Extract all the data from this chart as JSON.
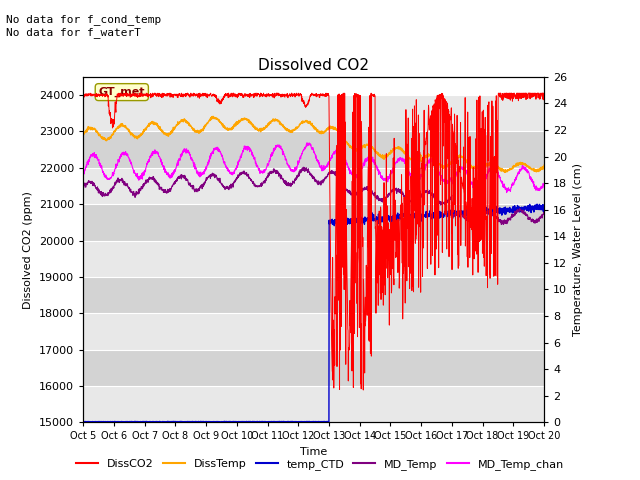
{
  "title": "Dissolved CO2",
  "xlabel": "Time",
  "ylabel_left": "Dissolved CO2 (ppm)",
  "ylabel_right": "Temperature, Water Level (cm)",
  "annotation_text": "No data for f_cond_temp\nNo data for f_waterT",
  "gt_met_label": "GT_met",
  "ylim_left": [
    15000,
    24500
  ],
  "ylim_right": [
    0,
    26
  ],
  "x_tick_labels": [
    "Oct 5",
    "Oct 6",
    "Oct 7",
    "Oct 8",
    "Oct 9",
    "Oct 10",
    "Oct 11",
    "Oct 12",
    "Oct 13",
    "Oct 14",
    "Oct 15",
    "Oct 16",
    "Oct 17",
    "Oct 18",
    "Oct 19",
    "Oct 20"
  ],
  "colors": {
    "DissCO2": "#ff0000",
    "DissTemp": "#ffa500",
    "temp_CTD": "#0000cd",
    "MD_Temp": "#800080",
    "MD_Temp_chan": "#ff00ff"
  },
  "yticks_left": [
    15000,
    16000,
    17000,
    18000,
    19000,
    20000,
    21000,
    22000,
    23000,
    24000
  ],
  "yticks_right": [
    0,
    2,
    4,
    6,
    8,
    10,
    12,
    14,
    16,
    18,
    20,
    22,
    24,
    26
  ],
  "bg_light": "#e8e8e8",
  "bg_dark": "#d3d3d3"
}
